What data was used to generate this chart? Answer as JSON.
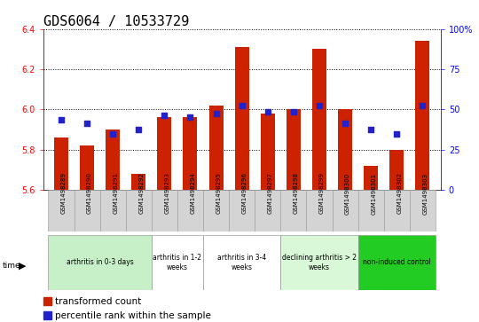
{
  "title": "GDS6064 / 10533729",
  "samples": [
    "GSM1498289",
    "GSM1498290",
    "GSM1498291",
    "GSM1498292",
    "GSM1498293",
    "GSM1498294",
    "GSM1498295",
    "GSM1498296",
    "GSM1498297",
    "GSM1498298",
    "GSM1498299",
    "GSM1498300",
    "GSM1498301",
    "GSM1498302",
    "GSM1498303"
  ],
  "red_values": [
    5.86,
    5.82,
    5.9,
    5.68,
    5.96,
    5.96,
    6.02,
    6.31,
    5.98,
    6.0,
    6.3,
    6.0,
    5.72,
    5.8,
    6.34
  ],
  "blue_values": [
    5.95,
    5.93,
    5.88,
    5.9,
    5.97,
    5.96,
    5.98,
    6.02,
    5.99,
    5.99,
    6.02,
    5.93,
    5.9,
    5.88,
    6.02
  ],
  "ylim": [
    5.6,
    6.4
  ],
  "yticks_left": [
    5.6,
    5.8,
    6.0,
    6.2,
    6.4
  ],
  "yticks_right_vals": [
    5.6,
    5.8,
    6.0,
    6.2,
    6.4
  ],
  "yticks_right_labels": [
    "0",
    "25",
    "50",
    "75",
    "100%"
  ],
  "groups": [
    {
      "label": "arthritis in 0-3 days",
      "start": 0,
      "end": 4,
      "color": "#c8f0c8"
    },
    {
      "label": "arthritis in 1-2\nweeks",
      "start": 4,
      "end": 6,
      "color": "#ffffff"
    },
    {
      "label": "arthritis in 3-4\nweeks",
      "start": 6,
      "end": 9,
      "color": "#ffffff"
    },
    {
      "label": "declining arthritis > 2\nweeks",
      "start": 9,
      "end": 12,
      "color": "#d8f8d8"
    },
    {
      "label": "non-induced control",
      "start": 12,
      "end": 15,
      "color": "#22cc22"
    }
  ],
  "bar_color": "#cc2200",
  "dot_color": "#2222cc",
  "bar_width": 0.55,
  "dot_size": 22,
  "background_color": "#ffffff",
  "plot_bg_color": "#ffffff",
  "title_fontsize": 11,
  "tick_fontsize": 7,
  "label_fontsize": 7,
  "legend_fontsize": 7.5,
  "sample_fontsize": 5.0
}
